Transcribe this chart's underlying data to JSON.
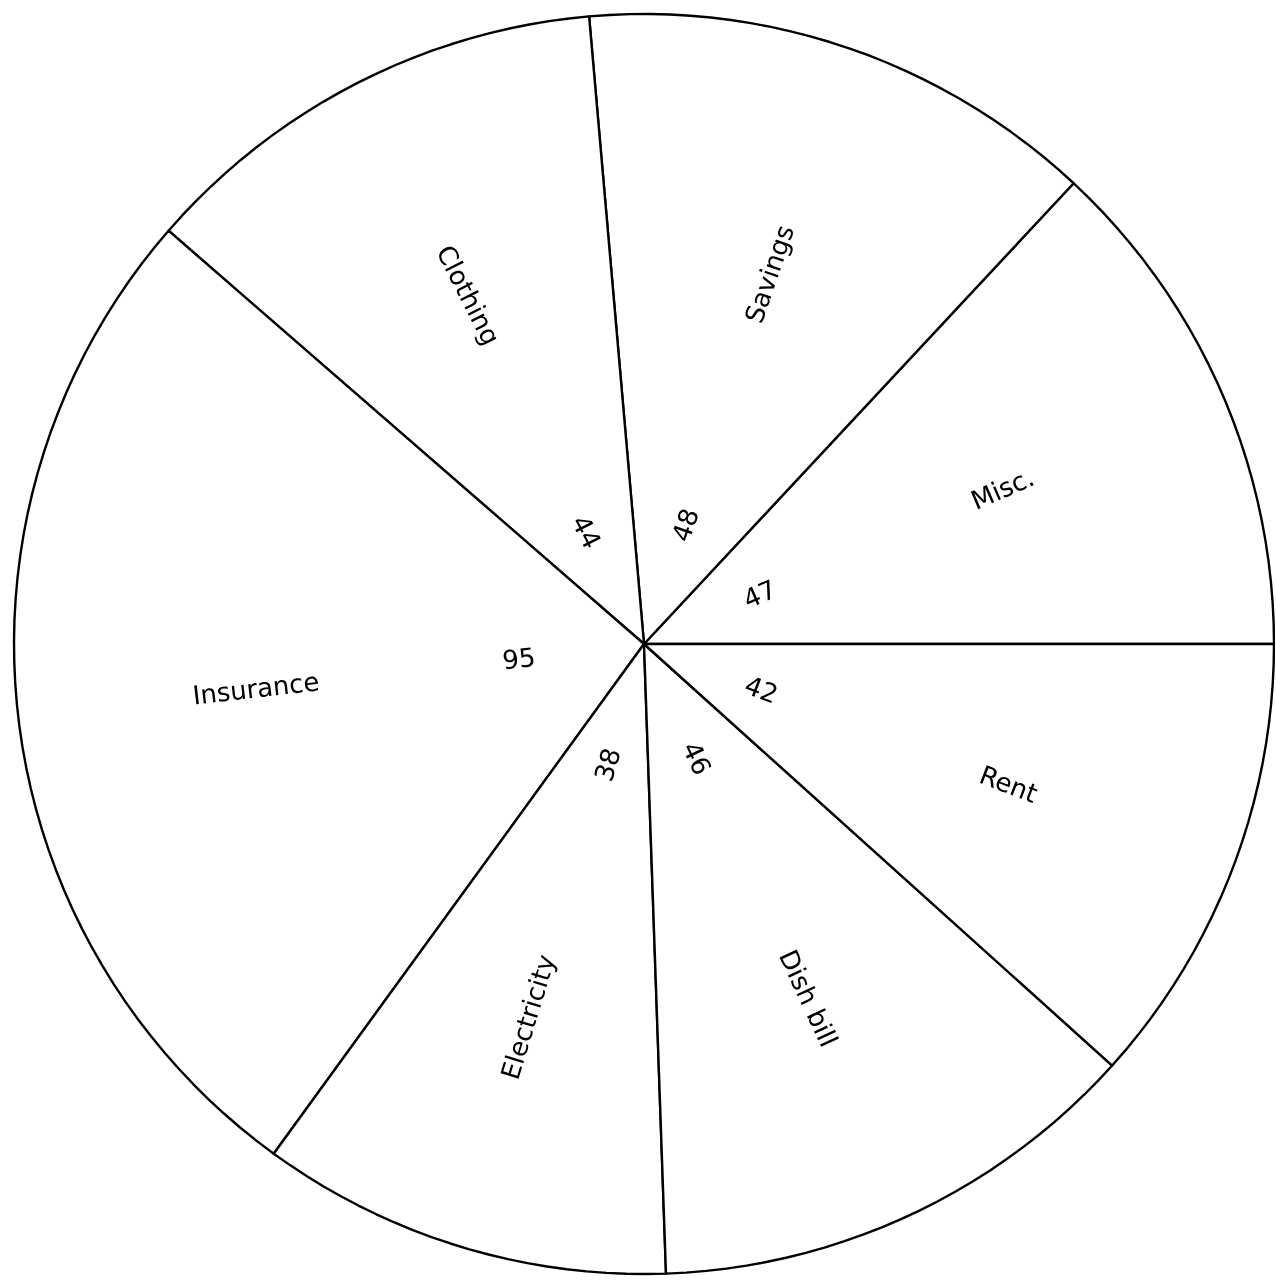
{
  "chart_data": {
    "type": "pie",
    "categories": [
      "Misc.",
      "Savings",
      "Clothing",
      "Insurance",
      "Electricity",
      "Dish bill",
      "Rent"
    ],
    "values": [
      47,
      48,
      44,
      95,
      38,
      46,
      42
    ],
    "colors": [
      "#ffffff",
      "#ffffff",
      "#ffffff",
      "#ffffff",
      "#ffffff",
      "#ffffff",
      "#ffffff"
    ],
    "data_labels": true
  }
}
